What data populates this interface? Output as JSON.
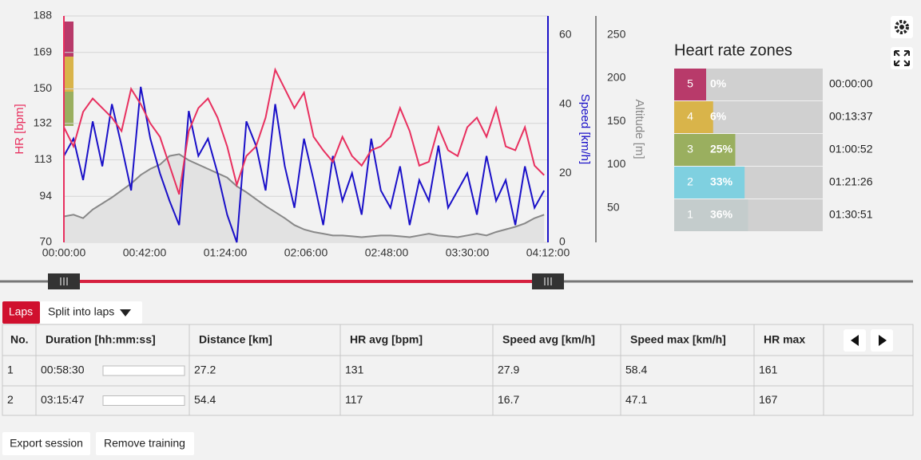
{
  "chart_data": {
    "type": "line",
    "x": [
      0,
      5,
      10,
      15,
      20,
      25,
      30,
      35,
      40,
      45,
      50,
      55,
      60,
      65,
      70,
      75,
      80,
      85,
      90,
      95,
      100,
      105,
      110,
      115,
      120,
      125,
      130,
      135,
      140,
      145,
      150,
      155,
      160,
      165,
      170,
      175,
      180,
      185,
      190,
      195,
      200,
      205,
      210,
      215,
      220,
      225,
      230,
      235,
      240,
      245,
      250
    ],
    "xlim": [
      0,
      252
    ],
    "xticks": [
      {
        "value": 0,
        "label": "00:00:00"
      },
      {
        "value": 42,
        "label": "00:42:00"
      },
      {
        "value": 84,
        "label": "01:24:00"
      },
      {
        "value": 126,
        "label": "02:06:00"
      },
      {
        "value": 168,
        "label": "02:48:00"
      },
      {
        "value": 210,
        "label": "03:30:00"
      },
      {
        "value": 252,
        "label": "04:12:00"
      }
    ],
    "y_label": "HR [bpm]",
    "y2_label": "Speed [km/h]",
    "y3_label": "Altitude [m]",
    "ylim": [
      70,
      188
    ],
    "yticks": [
      70,
      94,
      113,
      132,
      150,
      169,
      188
    ],
    "y2lim": [
      0,
      65.5
    ],
    "y2ticks": [
      0,
      20,
      40,
      60
    ],
    "y3lim": [
      10,
      272
    ],
    "y3ticks": [
      50,
      100,
      150,
      200,
      250
    ],
    "grid": true,
    "series": [
      {
        "axis": "y3",
        "color": "#888888",
        "fill": "#e2e2e2",
        "values": [
          40,
          42,
          38,
          48,
          55,
          62,
          70,
          78,
          88,
          95,
          100,
          110,
          112,
          105,
          100,
          95,
          90,
          85,
          75,
          68,
          60,
          52,
          45,
          38,
          30,
          25,
          22,
          20,
          18,
          18,
          17,
          16,
          17,
          18,
          18,
          17,
          16,
          18,
          20,
          18,
          17,
          16,
          18,
          20,
          18,
          22,
          25,
          28,
          32,
          38,
          42
        ]
      },
      {
        "axis": "y2",
        "color": "#1a10c8",
        "values": [
          25,
          30,
          18,
          35,
          22,
          40,
          28,
          15,
          45,
          30,
          20,
          12,
          5,
          38,
          25,
          30,
          20,
          8,
          0,
          35,
          28,
          15,
          40,
          22,
          10,
          30,
          18,
          5,
          25,
          12,
          20,
          8,
          30,
          15,
          10,
          22,
          5,
          18,
          12,
          28,
          10,
          15,
          20,
          8,
          25,
          12,
          18,
          5,
          22,
          10,
          15
        ]
      },
      {
        "axis": "y",
        "color": "#e8305f",
        "values": [
          130,
          120,
          138,
          145,
          140,
          135,
          128,
          150,
          142,
          132,
          125,
          110,
          95,
          128,
          140,
          145,
          135,
          120,
          100,
          115,
          120,
          135,
          160,
          150,
          140,
          148,
          125,
          118,
          112,
          125,
          115,
          110,
          118,
          120,
          125,
          140,
          128,
          110,
          112,
          130,
          118,
          115,
          130,
          135,
          125,
          140,
          120,
          118,
          130,
          110,
          105
        ]
      }
    ]
  },
  "hr_zones": {
    "title": "Heart rate zones",
    "zones": [
      {
        "number": 5,
        "percent": 0,
        "percent_label": "0%",
        "time": "00:00:00",
        "color": "#b83a6a"
      },
      {
        "number": 4,
        "percent": 6,
        "percent_label": "6%",
        "time": "00:13:37",
        "color": "#d9b44a"
      },
      {
        "number": 3,
        "percent": 25,
        "percent_label": "25%",
        "time": "01:00:52",
        "color": "#9aaf5f"
      },
      {
        "number": 2,
        "percent": 33,
        "percent_label": "33%",
        "time": "01:21:26",
        "color": "#7fd0e0"
      },
      {
        "number": 1,
        "percent": 36,
        "percent_label": "36%",
        "time": "01:30:51",
        "color": "#c4cccc"
      }
    ]
  },
  "toolbar": {
    "laps": "Laps",
    "split": "Split into laps"
  },
  "laps_table": {
    "columns": [
      "No.",
      "Duration [hh:mm:ss]",
      "Distance [km]",
      "HR avg [bpm]",
      "Speed avg [km/h]",
      "Speed max [km/h]",
      "HR max"
    ],
    "rows": [
      [
        "1",
        "00:58:30",
        "27.2",
        "131",
        "27.9",
        "58.4",
        "161"
      ],
      [
        "2",
        "03:15:47",
        "54.4",
        "117",
        "16.7",
        "47.1",
        "167"
      ]
    ]
  },
  "actions": [
    "Export session",
    "Remove training"
  ]
}
